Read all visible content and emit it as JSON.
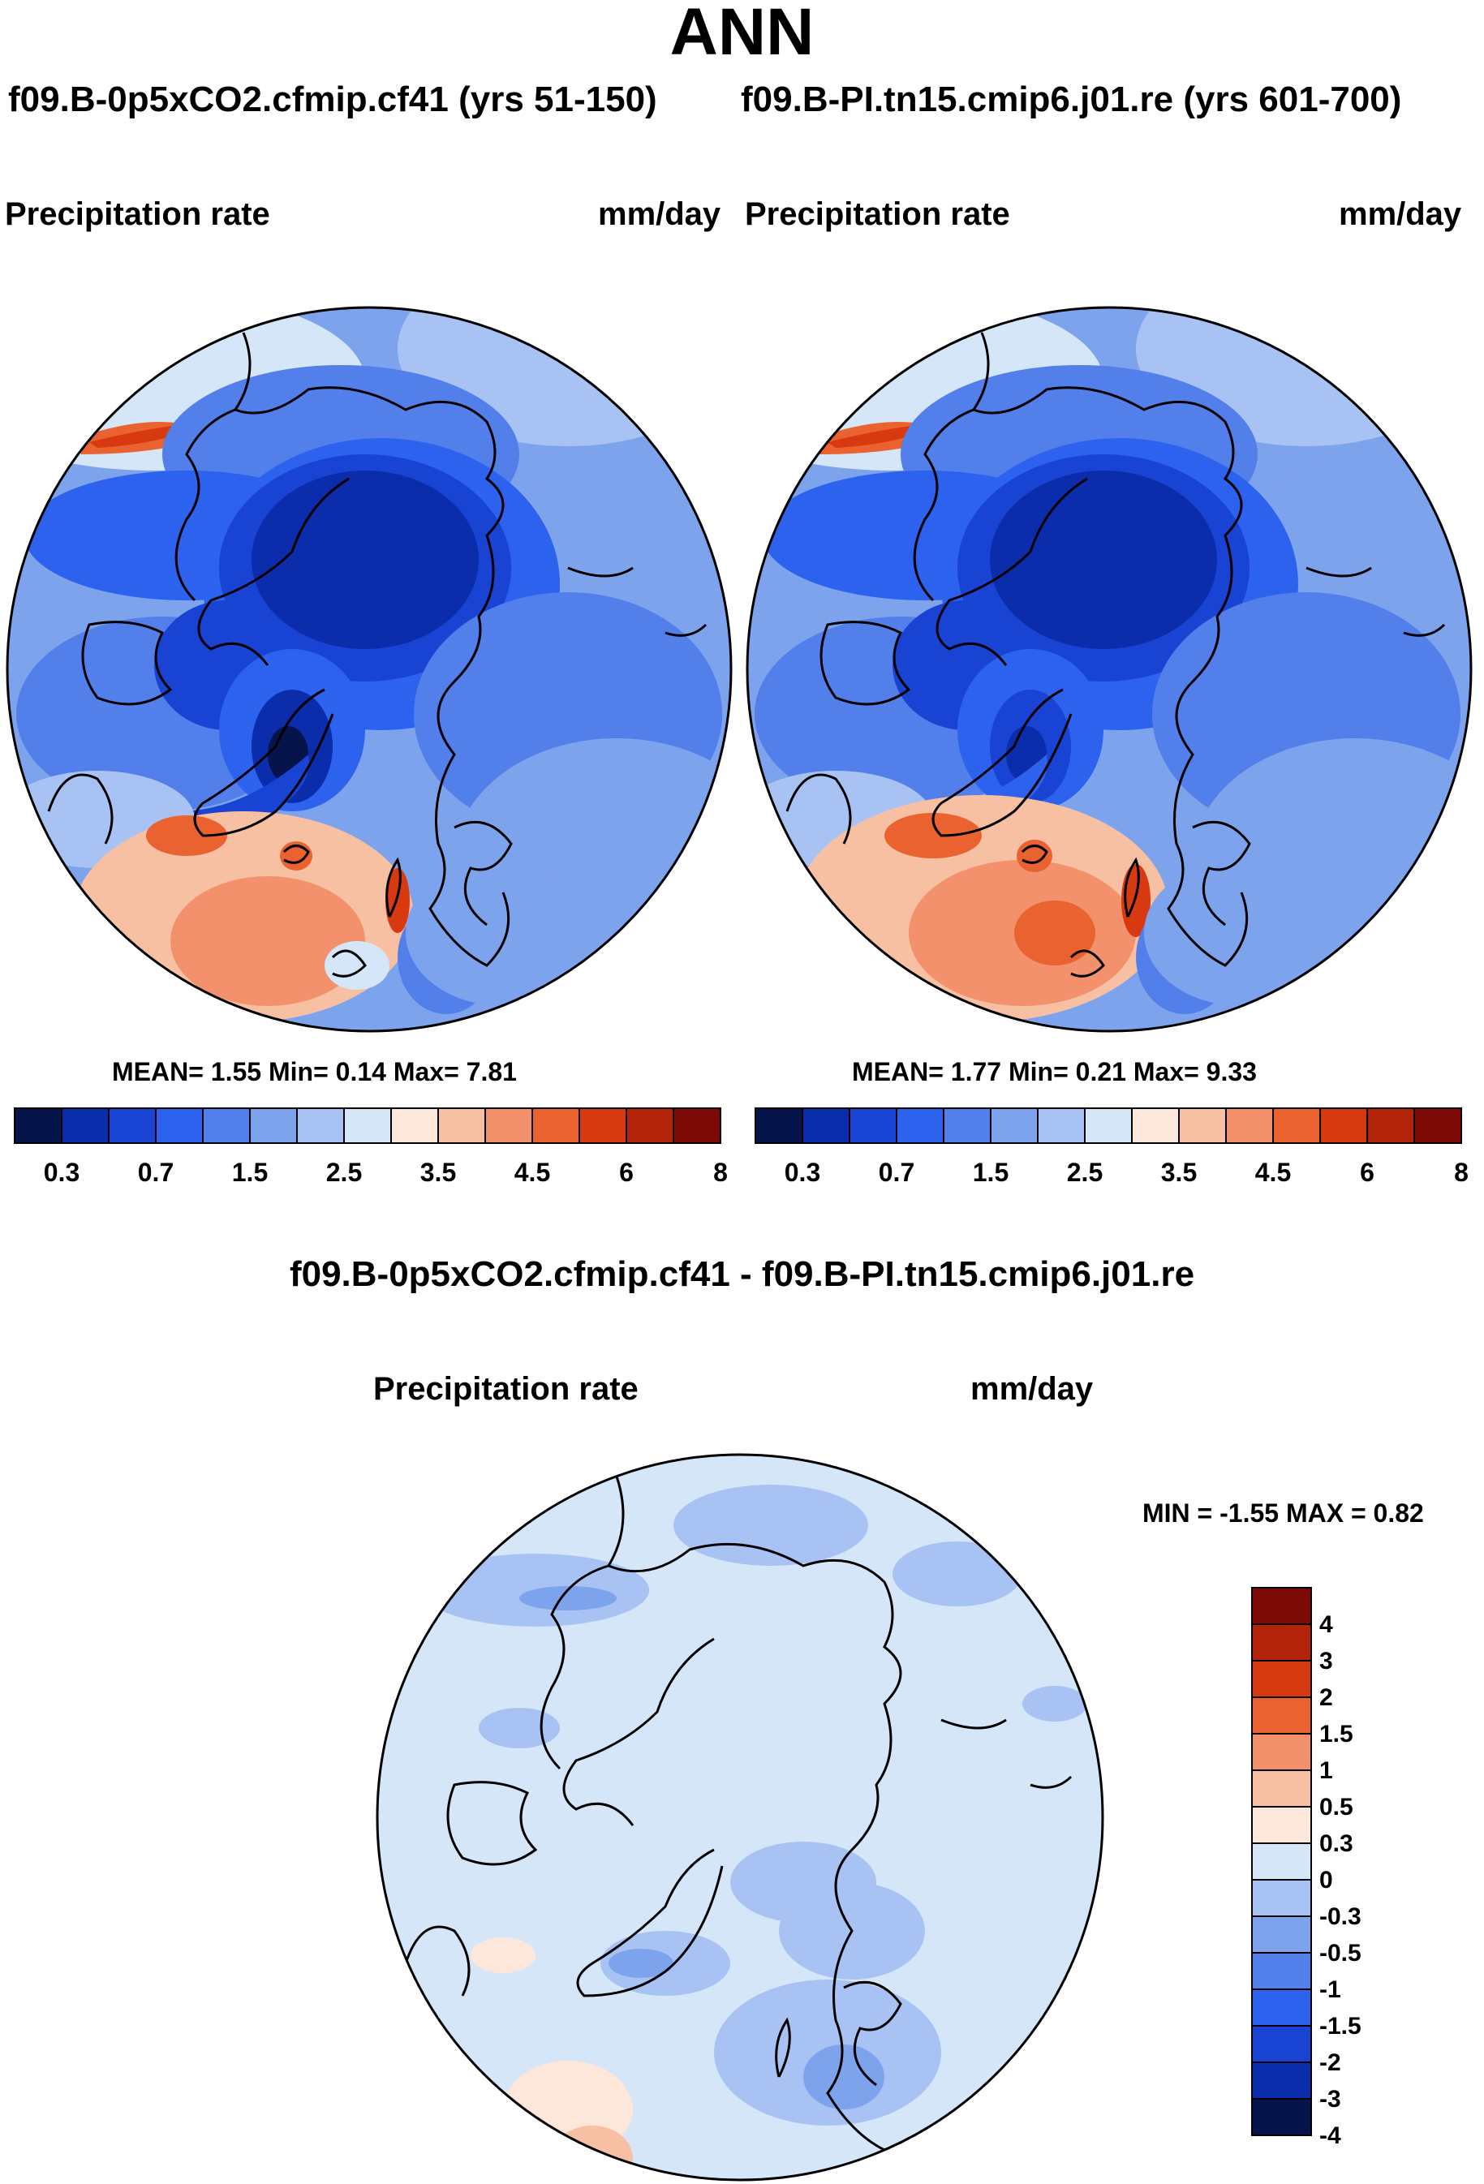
{
  "title": "ANN",
  "cases": {
    "left": "f09.B-0p5xCO2.cfmip.cf41 (yrs 51-150)",
    "right": "f09.B-PI.tn15.cmip6.j01.re (yrs 601-700)"
  },
  "colors": {
    "abs_palette": [
      "#05154b",
      "#0b2cab",
      "#1843d3",
      "#2d62ee",
      "#527fe9",
      "#7ea3ed",
      "#a8c3f3",
      "#d6e6f9",
      "#fde7da",
      "#f8c0a2",
      "#f2916c",
      "#e9622f",
      "#d73a10",
      "#b3230a",
      "#7d0a06"
    ],
    "diff_palette": [
      "#05154b",
      "#0b2cab",
      "#1843d3",
      "#2d62ee",
      "#527fe9",
      "#7ea3ed",
      "#a8c3f3",
      "#d6e6f9",
      "#fde7da",
      "#f8c0a2",
      "#f2916c",
      "#e9622f",
      "#d73a10",
      "#b3230a",
      "#7d0a06"
    ]
  },
  "chart_data": [
    {
      "type": "heatmap",
      "projection": "north-polar-stereographic",
      "case": "f09.B-0p5xCO2.cfmip.cf41 (yrs 51-150)",
      "variable": "Precipitation rate",
      "units": "mm/day",
      "stats": {
        "mean": "1.55",
        "min": "0.14",
        "max": "7.81",
        "text": "MEAN=   1.55  Min=   0.14  Max=   7.81"
      },
      "colorbar_levels": [
        0.2,
        0.3,
        0.5,
        0.7,
        1,
        1.5,
        2,
        2.5,
        3,
        3.5,
        4,
        4.5,
        5,
        6,
        7,
        8
      ],
      "colorbar_labels": [
        "0.3",
        "0.7",
        "1.5",
        "2.5",
        "3.5",
        "4.5",
        "6",
        "8"
      ]
    },
    {
      "type": "heatmap",
      "projection": "north-polar-stereographic",
      "case": "f09.B-PI.tn15.cmip6.j01.re (yrs 601-700)",
      "variable": "Precipitation rate",
      "units": "mm/day",
      "stats": {
        "mean": "1.77",
        "min": "0.21",
        "max": "9.33",
        "text": "MEAN=   1.77  Min=   0.21  Max=   9.33"
      },
      "colorbar_levels": [
        0.2,
        0.3,
        0.5,
        0.7,
        1,
        1.5,
        2,
        2.5,
        3,
        3.5,
        4,
        4.5,
        5,
        6,
        7,
        8
      ],
      "colorbar_labels": [
        "0.3",
        "0.7",
        "1.5",
        "2.5",
        "3.5",
        "4.5",
        "6",
        "8"
      ]
    },
    {
      "type": "heatmap",
      "projection": "north-polar-stereographic",
      "title": "f09.B-0p5xCO2.cfmip.cf41 - f09.B-PI.tn15.cmip6.j01.re",
      "variable": "Precipitation rate",
      "units": "mm/day",
      "stats": {
        "min": "-1.55",
        "max": "0.82",
        "text": "MIN =  -1.55 MAX =   0.82"
      },
      "colorbar_labels": [
        "4",
        "3",
        "2",
        "1.5",
        "1",
        "0.5",
        "0.3",
        "0",
        "-0.3",
        "-0.5",
        "-1",
        "-1.5",
        "-2",
        "-3",
        "-4"
      ]
    }
  ]
}
